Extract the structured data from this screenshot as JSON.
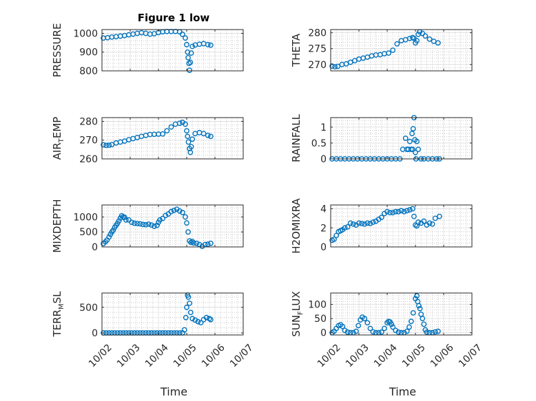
{
  "figure_title": "Figure 1 low",
  "colors": {
    "marker": "#0072BD",
    "axis": "#262626",
    "grid": "#bdbdbd"
  },
  "chart_data": [
    {
      "type": "scatter",
      "title": "Figure 1 low",
      "xlabel": "",
      "ylabel": "PRESSURE",
      "ylim": [
        800,
        1020
      ],
      "yticks": [
        800,
        900,
        1000
      ],
      "yticklabels": [
        "800",
        "900",
        "1000"
      ],
      "xlim": [
        0,
        5
      ],
      "xticks": [
        0,
        1,
        2,
        3,
        4,
        5
      ],
      "grid": true,
      "x": [
        0.05,
        0.2,
        0.35,
        0.5,
        0.65,
        0.8,
        0.95,
        1.1,
        1.25,
        1.4,
        1.55,
        1.7,
        1.85,
        2.0,
        2.15,
        2.3,
        2.45,
        2.6,
        2.75,
        2.85,
        2.95,
        3.0,
        3.03,
        3.05,
        3.08,
        3.1,
        3.13,
        3.16,
        3.2,
        3.3,
        3.45,
        3.6,
        3.75,
        3.85
      ],
      "y": [
        975,
        977,
        980,
        982,
        985,
        988,
        992,
        996,
        1000,
        1003,
        1000,
        996,
        998,
        1004,
        1008,
        1010,
        1010,
        1010,
        1008,
        995,
        975,
        940,
        900,
        870,
        840,
        803,
        845,
        895,
        930,
        938,
        942,
        945,
        940,
        937
      ]
    },
    {
      "type": "scatter",
      "title": "",
      "xlabel": "",
      "ylabel": "THETA",
      "ylim": [
        268,
        281
      ],
      "yticks": [
        270,
        275,
        280
      ],
      "yticklabels": [
        "270",
        "275",
        "280"
      ],
      "xlim": [
        0,
        5
      ],
      "xticks": [
        0,
        1,
        2,
        3,
        4,
        5
      ],
      "grid": true,
      "x": [
        0.05,
        0.15,
        0.25,
        0.4,
        0.55,
        0.7,
        0.85,
        1.0,
        1.15,
        1.3,
        1.45,
        1.6,
        1.75,
        1.9,
        2.05,
        2.2,
        2.35,
        2.5,
        2.65,
        2.8,
        2.9,
        2.95,
        3.0,
        3.05,
        3.1,
        3.15,
        3.25,
        3.35,
        3.5,
        3.65,
        3.8
      ],
      "y": [
        269.5,
        269.3,
        269.4,
        270,
        270.2,
        270.7,
        271.2,
        271.7,
        272,
        272.3,
        272.7,
        273,
        273.1,
        273.4,
        273.6,
        274.5,
        276.5,
        277.5,
        277.8,
        278.2,
        278.5,
        278.2,
        276.8,
        277.5,
        279.5,
        280.3,
        279.8,
        279,
        278,
        277.3,
        276.8
      ]
    },
    {
      "type": "scatter",
      "title": "",
      "xlabel": "",
      "ylabel": "AIR_TEMP",
      "ylabel_main": "AIR",
      "ylabel_sub": "T",
      "ylabel_rest": "EMP",
      "ylim": [
        260,
        282
      ],
      "yticks": [
        260,
        270,
        280
      ],
      "yticklabels": [
        "260",
        "270",
        "280"
      ],
      "xlim": [
        0,
        5
      ],
      "xticks": [
        0,
        1,
        2,
        3,
        4,
        5
      ],
      "grid": true,
      "x": [
        0.05,
        0.15,
        0.25,
        0.35,
        0.5,
        0.65,
        0.8,
        0.95,
        1.1,
        1.25,
        1.4,
        1.55,
        1.7,
        1.85,
        2.0,
        2.15,
        2.3,
        2.45,
        2.6,
        2.75,
        2.85,
        2.95,
        3.0,
        3.03,
        3.06,
        3.1,
        3.13,
        3.16,
        3.2,
        3.3,
        3.45,
        3.6,
        3.75,
        3.85
      ],
      "y": [
        267.5,
        267.2,
        267.3,
        267.6,
        268.5,
        269,
        269.5,
        270.2,
        270.8,
        271.4,
        272,
        272.5,
        273,
        273.1,
        273.2,
        273.3,
        275,
        277,
        278.5,
        279,
        279.5,
        278.5,
        275,
        272,
        269,
        265.5,
        263.5,
        266.5,
        270.5,
        273.5,
        274,
        273.5,
        272.5,
        272
      ]
    },
    {
      "type": "scatter",
      "title": "",
      "xlabel": "",
      "ylabel": "RAINFALL",
      "ylim": [
        0,
        1.3
      ],
      "yticks": [
        0,
        0.5,
        1
      ],
      "yticklabels": [
        "0",
        "0.5",
        "1"
      ],
      "xlim": [
        0,
        5
      ],
      "xticks": [
        0,
        1,
        2,
        3,
        4,
        5
      ],
      "grid": true,
      "x": [
        0.05,
        0.2,
        0.35,
        0.5,
        0.65,
        0.8,
        0.95,
        1.1,
        1.25,
        1.4,
        1.55,
        1.7,
        1.85,
        2.0,
        2.15,
        2.3,
        2.45,
        2.55,
        2.65,
        2.7,
        2.75,
        2.8,
        2.85,
        2.88,
        2.9,
        2.92,
        2.95,
        2.98,
        3.0,
        3.02,
        3.05,
        3.1,
        3.2,
        3.3,
        3.45,
        3.6,
        3.75,
        3.85
      ],
      "y": [
        0,
        0,
        0,
        0,
        0,
        0,
        0,
        0,
        0,
        0,
        0,
        0,
        0,
        0,
        0,
        0,
        0,
        0.3,
        0.65,
        0.3,
        0.3,
        0.55,
        0.3,
        0.8,
        0.3,
        0.95,
        1.3,
        0.6,
        0.2,
        0,
        0.55,
        0.3,
        0,
        0,
        0,
        0,
        0,
        0
      ]
    },
    {
      "type": "scatter",
      "title": "",
      "xlabel": "",
      "ylabel": "MIXDEPTH",
      "ylim": [
        0,
        1400
      ],
      "yticks": [
        0,
        500,
        1000
      ],
      "yticklabels": [
        "0",
        "500",
        "1000"
      ],
      "xlim": [
        0,
        5
      ],
      "xticks": [
        0,
        1,
        2,
        3,
        4,
        5
      ],
      "grid": true,
      "x": [
        0.05,
        0.12,
        0.18,
        0.25,
        0.3,
        0.35,
        0.4,
        0.45,
        0.5,
        0.55,
        0.6,
        0.65,
        0.7,
        0.75,
        0.8,
        0.85,
        0.95,
        1.05,
        1.15,
        1.25,
        1.35,
        1.45,
        1.55,
        1.65,
        1.75,
        1.85,
        1.95,
        2.0,
        2.05,
        2.15,
        2.25,
        2.35,
        2.45,
        2.55,
        2.65,
        2.75,
        2.85,
        2.95,
        3.0,
        3.05,
        3.1,
        3.15,
        3.2,
        3.25,
        3.35,
        3.45,
        3.55,
        3.65,
        3.75,
        3.85
      ],
      "y": [
        110,
        170,
        230,
        330,
        420,
        500,
        560,
        650,
        720,
        790,
        870,
        960,
        1040,
        1000,
        990,
        900,
        900,
        820,
        790,
        780,
        770,
        750,
        740,
        760,
        730,
        690,
        720,
        820,
        900,
        950,
        1050,
        1100,
        1180,
        1220,
        1260,
        1200,
        1150,
        1000,
        800,
        500,
        200,
        150,
        180,
        130,
        120,
        80,
        20,
        80,
        90,
        120
      ]
    },
    {
      "type": "scatter",
      "title": "",
      "xlabel": "",
      "ylabel": "H2OMIXRA",
      "ylim": [
        0,
        4.4
      ],
      "yticks": [
        0,
        2,
        4
      ],
      "yticklabels": [
        "0",
        "2",
        "4"
      ],
      "xlim": [
        0,
        5
      ],
      "xticks": [
        0,
        1,
        2,
        3,
        4,
        5
      ],
      "grid": true,
      "x": [
        0.05,
        0.12,
        0.2,
        0.28,
        0.35,
        0.42,
        0.5,
        0.6,
        0.7,
        0.8,
        0.9,
        1.0,
        1.1,
        1.2,
        1.3,
        1.4,
        1.5,
        1.6,
        1.7,
        1.8,
        1.9,
        2.0,
        2.1,
        2.2,
        2.3,
        2.4,
        2.5,
        2.6,
        2.7,
        2.8,
        2.9,
        2.95,
        3.0,
        3.05,
        3.1,
        3.2,
        3.3,
        3.4,
        3.5,
        3.6,
        3.7,
        3.85
      ],
      "y": [
        0.7,
        0.8,
        1.2,
        1.6,
        1.7,
        1.8,
        2.0,
        2.1,
        2.5,
        2.4,
        2.3,
        2.5,
        2.45,
        2.4,
        2.5,
        2.45,
        2.6,
        2.7,
        2.9,
        3.1,
        3.5,
        3.7,
        3.6,
        3.6,
        3.7,
        3.7,
        3.8,
        3.7,
        3.8,
        3.9,
        4.0,
        3.2,
        2.3,
        2.2,
        2.6,
        2.5,
        2.7,
        2.3,
        2.5,
        2.4,
        3.0,
        3.2
      ]
    },
    {
      "type": "scatter",
      "title": "",
      "xlabel": "Time",
      "ylabel": "TERR_MSL",
      "ylabel_main": "TERR",
      "ylabel_sub": "M",
      "ylabel_rest": "SL",
      "ylim": [
        -40,
        780
      ],
      "yticks": [
        0,
        500
      ],
      "yticklabels": [
        "0",
        "500"
      ],
      "xlim": [
        0,
        5
      ],
      "xticks": [
        0,
        1,
        2,
        3,
        4,
        5
      ],
      "xticklabels": [
        "10/02",
        "10/03",
        "10/04",
        "10/05",
        "10/06",
        "10/07"
      ],
      "grid": true,
      "x": [
        0.05,
        0.15,
        0.25,
        0.35,
        0.45,
        0.55,
        0.65,
        0.75,
        0.85,
        0.95,
        1.05,
        1.15,
        1.25,
        1.35,
        1.45,
        1.55,
        1.65,
        1.75,
        1.85,
        1.95,
        2.05,
        2.15,
        2.25,
        2.35,
        2.45,
        2.55,
        2.65,
        2.75,
        2.85,
        2.92,
        2.97,
        3.0,
        3.03,
        3.06,
        3.1,
        3.14,
        3.2,
        3.3,
        3.4,
        3.5,
        3.6,
        3.7,
        3.8,
        3.85
      ],
      "y": [
        0,
        0,
        0,
        0,
        0,
        0,
        0,
        0,
        0,
        0,
        0,
        0,
        0,
        0,
        0,
        0,
        0,
        0,
        0,
        0,
        0,
        0,
        0,
        0,
        0,
        0,
        0,
        0,
        0,
        60,
        300,
        500,
        740,
        700,
        580,
        400,
        280,
        250,
        220,
        200,
        260,
        300,
        280,
        260
      ]
    },
    {
      "type": "scatter",
      "title": "",
      "xlabel": "Time",
      "ylabel": "SUN_FLUX",
      "ylabel_main": "SUN",
      "ylabel_sub": "F",
      "ylabel_rest": "LUX",
      "ylim": [
        -8,
        140
      ],
      "yticks": [
        0,
        50,
        100
      ],
      "yticklabels": [
        "0",
        "50",
        "100"
      ],
      "xlim": [
        0,
        5
      ],
      "xticks": [
        0,
        1,
        2,
        3,
        4,
        5
      ],
      "xticklabels": [
        "10/02",
        "10/03",
        "10/04",
        "10/05",
        "10/06",
        "10/07"
      ],
      "grid": true,
      "x": [
        0.05,
        0.12,
        0.2,
        0.28,
        0.35,
        0.42,
        0.5,
        0.6,
        0.7,
        0.8,
        0.9,
        0.98,
        1.05,
        1.12,
        1.2,
        1.3,
        1.4,
        1.5,
        1.6,
        1.7,
        1.8,
        1.9,
        2.0,
        2.05,
        2.1,
        2.15,
        2.2,
        2.3,
        2.4,
        2.5,
        2.6,
        2.7,
        2.78,
        2.85,
        2.92,
        3.0,
        3.05,
        3.08,
        3.12,
        3.16,
        3.2,
        3.25,
        3.3,
        3.35,
        3.4,
        3.5,
        3.6,
        3.7,
        3.8
      ],
      "y": [
        0,
        5,
        15,
        25,
        28,
        22,
        8,
        2,
        0,
        0,
        5,
        25,
        45,
        55,
        50,
        35,
        15,
        3,
        0,
        0,
        2,
        15,
        35,
        40,
        38,
        30,
        20,
        8,
        2,
        0,
        0,
        5,
        20,
        40,
        70,
        120,
        130,
        110,
        95,
        85,
        65,
        50,
        30,
        10,
        2,
        0,
        0,
        3,
        5
      ]
    }
  ]
}
